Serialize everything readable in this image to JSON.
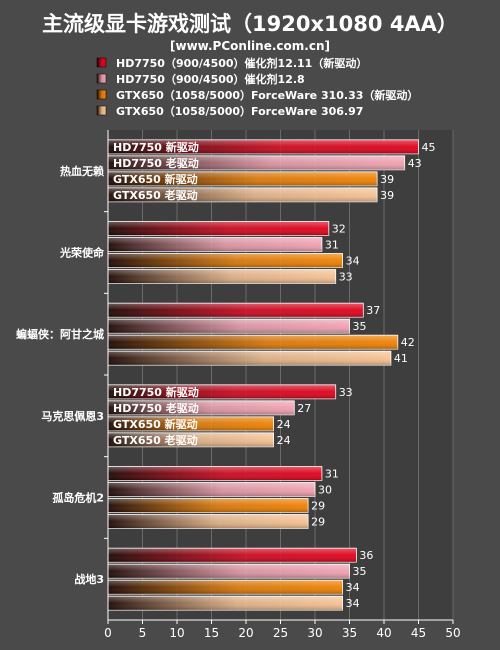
{
  "chart_data": {
    "type": "bar",
    "orientation": "horizontal",
    "title": "主流级显卡游戏测试（1920x1080 4AA）",
    "subtitle": "[www.PConline.com.cn]",
    "categories": [
      "热血无赖",
      "光荣使命",
      "蝙蝠侠：阿甘之城",
      "马克思佩恩3",
      "孤岛危机2",
      "战地3"
    ],
    "series": [
      {
        "name": "HD7750（900/4500）催化剂12.11（新驱动）",
        "short": "HD7750 新驱动",
        "color": "#e0001a",
        "values": [
          45,
          32,
          37,
          33,
          31,
          36
        ]
      },
      {
        "name": "HD7750（900/4500）催化剂12.8",
        "short": "HD7750 老驱动",
        "color": "#f0a0b0",
        "values": [
          43,
          31,
          35,
          27,
          30,
          35
        ]
      },
      {
        "name": "GTX650（1058/5000）ForceWare 310.33（新驱动）",
        "short": "GTX650 新驱动",
        "color": "#f08000",
        "values": [
          39,
          34,
          42,
          24,
          29,
          34
        ]
      },
      {
        "name": "GTX650（1058/5000）ForceWare 306.97",
        "short": "GTX650 老驱动",
        "color": "#f5c090",
        "values": [
          39,
          33,
          41,
          24,
          29,
          34
        ]
      }
    ],
    "bar_labels_shown_for": [
      "热血无赖",
      "马克思佩恩3"
    ],
    "xlim": [
      0,
      50
    ],
    "xticks": [
      0,
      5,
      10,
      15,
      20,
      25,
      30,
      35,
      40,
      45,
      50
    ],
    "xlabel": "",
    "ylabel": "",
    "grid": true,
    "legend_position": "top"
  }
}
